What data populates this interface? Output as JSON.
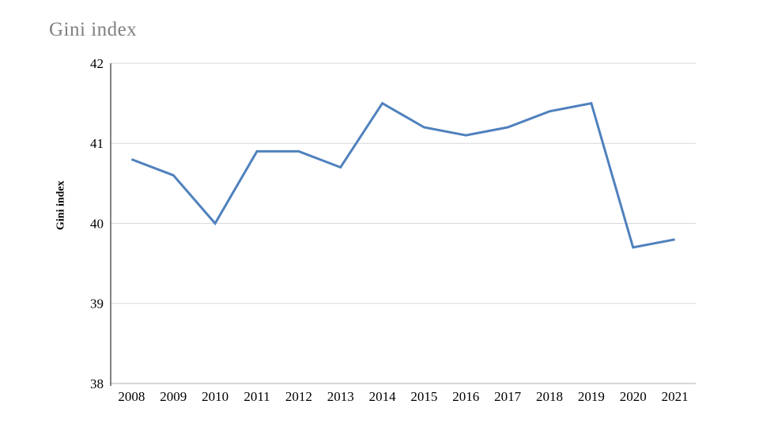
{
  "chart_data": {
    "type": "line",
    "title": "Gini index",
    "ylabel": "Gini index",
    "xlabel": "",
    "categories": [
      "2008",
      "2009",
      "2010",
      "2011",
      "2012",
      "2013",
      "2014",
      "2015",
      "2016",
      "2017",
      "2018",
      "2019",
      "2020",
      "2021"
    ],
    "series": [
      {
        "name": "Gini index",
        "values": [
          40.8,
          40.6,
          40.0,
          40.9,
          40.9,
          40.7,
          41.5,
          41.2,
          41.1,
          41.2,
          41.4,
          41.5,
          39.7,
          39.8
        ]
      }
    ],
    "ylim": [
      38,
      42
    ],
    "yticks": [
      38,
      39,
      40,
      41,
      42
    ],
    "grid": "horizontal",
    "legend": "none",
    "colors": {
      "line": "#4F81BD",
      "gridline": "#D9D9D9",
      "y_axis_line": "#595959",
      "bottom_axis_line": "#BFBFBF",
      "title_text": "#808080",
      "tick_text": "#000000"
    }
  }
}
